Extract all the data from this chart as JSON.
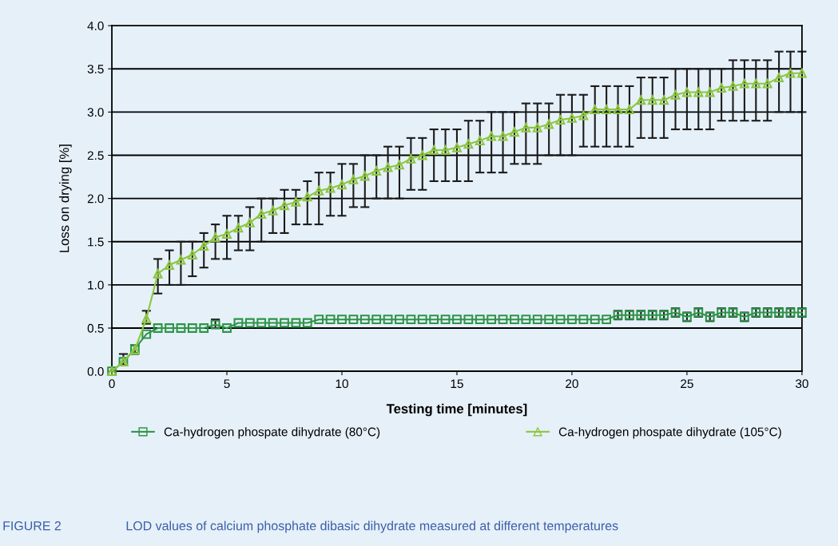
{
  "chart_data": {
    "type": "line",
    "xlabel": "Testing time [minutes]",
    "ylabel": "Loss on drying [%]",
    "x": [
      0,
      0.5,
      1,
      1.5,
      2,
      2.5,
      3,
      3.5,
      4,
      4.5,
      5,
      5.5,
      6,
      6.5,
      7,
      7.5,
      8,
      8.5,
      9,
      9.5,
      10,
      10.5,
      11,
      11.5,
      12,
      12.5,
      13,
      13.5,
      14,
      14.5,
      15,
      15.5,
      16,
      16.5,
      17,
      17.5,
      18,
      18.5,
      19,
      19.5,
      20,
      20.5,
      21,
      21.5,
      22,
      22.5,
      23,
      23.5,
      24,
      24.5,
      25,
      25.5,
      26,
      26.5,
      27,
      27.5,
      28,
      28.5,
      29,
      29.5,
      30
    ],
    "series": [
      {
        "name": "Ca-hydrogen phospate dihydrate (80°C)",
        "color": "#2e9448",
        "marker": "square",
        "values": [
          0,
          0.11,
          0.26,
          0.43,
          0.5,
          0.5,
          0.5,
          0.5,
          0.5,
          0.54,
          0.5,
          0.56,
          0.56,
          0.56,
          0.56,
          0.56,
          0.56,
          0.56,
          0.6,
          0.6,
          0.6,
          0.6,
          0.6,
          0.6,
          0.6,
          0.6,
          0.6,
          0.6,
          0.6,
          0.6,
          0.6,
          0.6,
          0.6,
          0.6,
          0.6,
          0.6,
          0.6,
          0.6,
          0.6,
          0.6,
          0.6,
          0.6,
          0.6,
          0.6,
          0.65,
          0.65,
          0.65,
          0.65,
          0.65,
          0.68,
          0.63,
          0.68,
          0.63,
          0.68,
          0.68,
          0.63,
          0.68,
          0.68,
          0.68,
          0.68,
          0.68
        ],
        "errors": [
          null,
          null,
          null,
          null,
          null,
          null,
          null,
          null,
          null,
          [
            0.5,
            0.6
          ],
          null,
          null,
          null,
          null,
          null,
          null,
          null,
          null,
          null,
          null,
          null,
          null,
          null,
          null,
          null,
          null,
          null,
          null,
          null,
          null,
          null,
          null,
          null,
          null,
          null,
          null,
          null,
          null,
          null,
          null,
          null,
          null,
          null,
          null,
          0.05,
          0.05,
          0.05,
          0.05,
          0.05,
          0.05,
          0.05,
          0.05,
          0.05,
          0.05,
          0.05,
          0.05,
          0.05,
          0.05,
          0.05,
          0.05,
          0.05
        ]
      },
      {
        "name": "Ca-hydrogen phospate dihydrate (105°C)",
        "color": "#8cc63f",
        "marker": "triangle",
        "values": [
          0,
          0.11,
          0.25,
          0.61,
          1.13,
          1.23,
          1.29,
          1.35,
          1.45,
          1.55,
          1.59,
          1.66,
          1.72,
          1.82,
          1.86,
          1.92,
          1.96,
          2.02,
          2.09,
          2.12,
          2.16,
          2.22,
          2.26,
          2.32,
          2.36,
          2.39,
          2.46,
          2.5,
          2.56,
          2.56,
          2.59,
          2.63,
          2.67,
          2.72,
          2.72,
          2.77,
          2.82,
          2.82,
          2.86,
          2.91,
          2.93,
          2.96,
          3.03,
          3.03,
          3.03,
          3.03,
          3.14,
          3.14,
          3.14,
          3.2,
          3.23,
          3.23,
          3.23,
          3.28,
          3.3,
          3.33,
          3.33,
          3.33,
          3.4,
          3.45,
          3.45
        ],
        "errors": [
          null,
          [
            0.07,
            0.2
          ],
          [
            0.2,
            0.3
          ],
          [
            0.55,
            0.7
          ],
          [
            0.9,
            1.3
          ],
          [
            1.0,
            1.4
          ],
          [
            1.0,
            1.5
          ],
          [
            1.1,
            1.5
          ],
          [
            1.2,
            1.6
          ],
          [
            1.3,
            1.7
          ],
          [
            1.3,
            1.8
          ],
          [
            1.4,
            1.8
          ],
          [
            1.4,
            1.9
          ],
          [
            1.5,
            2.0
          ],
          [
            1.6,
            2.0
          ],
          [
            1.6,
            2.1
          ],
          [
            1.7,
            2.1
          ],
          [
            1.7,
            2.2
          ],
          [
            1.7,
            2.3
          ],
          [
            1.8,
            2.3
          ],
          [
            1.8,
            2.4
          ],
          [
            1.9,
            2.4
          ],
          [
            1.9,
            2.5
          ],
          [
            2.0,
            2.5
          ],
          [
            2.0,
            2.6
          ],
          [
            2.0,
            2.6
          ],
          [
            2.1,
            2.7
          ],
          [
            2.1,
            2.7
          ],
          [
            2.2,
            2.8
          ],
          [
            2.2,
            2.8
          ],
          [
            2.2,
            2.8
          ],
          [
            2.2,
            2.9
          ],
          [
            2.3,
            2.9
          ],
          [
            2.3,
            3.0
          ],
          [
            2.3,
            3.0
          ],
          [
            2.4,
            3.0
          ],
          [
            2.4,
            3.1
          ],
          [
            2.4,
            3.1
          ],
          [
            2.5,
            3.1
          ],
          [
            2.5,
            3.2
          ],
          [
            2.5,
            3.2
          ],
          [
            2.6,
            3.2
          ],
          [
            2.6,
            3.3
          ],
          [
            2.6,
            3.3
          ],
          [
            2.6,
            3.3
          ],
          [
            2.6,
            3.3
          ],
          [
            2.7,
            3.4
          ],
          [
            2.7,
            3.4
          ],
          [
            2.7,
            3.4
          ],
          [
            2.8,
            3.5
          ],
          [
            2.8,
            3.5
          ],
          [
            2.8,
            3.5
          ],
          [
            2.8,
            3.5
          ],
          [
            2.9,
            3.5
          ],
          [
            2.9,
            3.6
          ],
          [
            2.9,
            3.6
          ],
          [
            2.9,
            3.6
          ],
          [
            2.9,
            3.6
          ],
          [
            3.0,
            3.7
          ],
          [
            3.0,
            3.7
          ],
          [
            3.0,
            3.7
          ]
        ]
      }
    ],
    "xlim": [
      0,
      30
    ],
    "xticks": [
      0,
      5,
      10,
      15,
      20,
      25,
      30
    ],
    "ylim": [
      0,
      4
    ],
    "yticks": [
      {
        "value": 0,
        "label": "0.0"
      },
      0.5,
      {
        "value": 1,
        "label": "1.0"
      },
      1.5,
      {
        "value": 2,
        "label": "2.0"
      },
      2.5,
      {
        "value": 3,
        "label": "3.0"
      },
      3.5,
      {
        "value": 4,
        "label": "4.0"
      }
    ],
    "grid": "y",
    "legend": "bottom",
    "line_style": "solid",
    "annotations": [
      "FIGURE 2",
      "LOD values of calcium phosphate dibasic dihydrate measured at different temperatures"
    ]
  }
}
